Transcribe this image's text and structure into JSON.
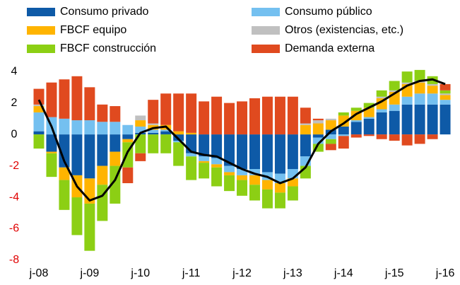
{
  "chart_data": {
    "type": "stacked_bar",
    "categories": [
      "j-08",
      null,
      null,
      null,
      "j-09",
      null,
      null,
      null,
      "j-10",
      null,
      null,
      null,
      "j-11",
      null,
      null,
      null,
      "j-12",
      null,
      null,
      null,
      "j-13",
      null,
      null,
      null,
      "j-14",
      null,
      null,
      null,
      "j-15",
      null,
      null,
      null,
      "j-16"
    ],
    "series": [
      {
        "name": "Consumo privado",
        "color": "#0e5aa7",
        "values": [
          0.2,
          -1.1,
          -2.1,
          -2.6,
          -2.8,
          -2.0,
          -1.1,
          -0.3,
          0.1,
          0.1,
          0.2,
          -0.4,
          -1.2,
          -1.4,
          -1.5,
          -2.0,
          -2.2,
          -2.2,
          -2.4,
          -2.5,
          -2.2,
          -1.4,
          -0.2,
          0.3,
          0.5,
          0.8,
          1.0,
          1.4,
          1.5,
          1.9,
          1.9,
          1.9,
          1.9
        ]
      },
      {
        "name": "Consumo público",
        "color": "#74c0f0",
        "values": [
          1.2,
          1.1,
          1.0,
          0.9,
          0.9,
          0.8,
          0.8,
          0.6,
          0.4,
          0.2,
          0.1,
          -0.1,
          -0.2,
          -0.3,
          -0.4,
          -0.4,
          -0.4,
          -0.4,
          -0.5,
          -0.6,
          -0.6,
          -0.6,
          -0.4,
          -0.3,
          -0.1,
          0.1,
          0.1,
          0.2,
          0.4,
          0.5,
          0.7,
          0.7,
          0.3
        ]
      },
      {
        "name": "FBCF equipo",
        "color": "#ffb400",
        "values": [
          0.4,
          -0.1,
          -0.8,
          -1.4,
          -1.6,
          -1.2,
          -0.9,
          -0.2,
          0.4,
          0.3,
          0.3,
          0.2,
          0.1,
          -0.1,
          -0.2,
          -0.2,
          -0.3,
          -0.6,
          -0.6,
          -0.6,
          -0.5,
          0.6,
          0.7,
          0.6,
          0.7,
          0.6,
          0.6,
          0.7,
          0.8,
          0.8,
          0.7,
          0.5,
          0.3
        ]
      },
      {
        "name": "Otros (existencias, etc.)",
        "color": "#c0c0c0",
        "values": [
          0.1,
          0,
          0,
          0,
          0,
          0,
          0,
          0,
          0.3,
          0.1,
          0,
          0,
          0,
          0,
          0,
          0,
          0,
          0,
          0,
          0,
          0,
          0.1,
          0.2,
          0.1,
          0,
          0,
          0,
          0.1,
          0.1,
          0.1,
          0.1,
          0.1,
          0.1
        ]
      },
      {
        "name": "FBCF construcción",
        "color": "#8ccf14",
        "values": [
          -0.9,
          -1.5,
          -1.9,
          -2.4,
          -3.0,
          -2.3,
          -2.4,
          -1.6,
          -1.2,
          -1.2,
          -1.2,
          -1.5,
          -1.5,
          -1.0,
          -1.2,
          -1.0,
          -1.0,
          -1.0,
          -1.2,
          -1.0,
          -0.9,
          -0.8,
          -0.5,
          -0.3,
          0.2,
          0.2,
          0.3,
          0.4,
          0.6,
          0.7,
          0.7,
          0.5,
          0.2
        ]
      },
      {
        "name": "Demanda externa",
        "color": "#e04a1f",
        "values": [
          1.0,
          2.2,
          2.5,
          2.8,
          2.1,
          1.1,
          1.0,
          -1.0,
          -0.5,
          1.5,
          2.0,
          2.4,
          2.5,
          2.1,
          2.4,
          2.0,
          2.1,
          2.3,
          2.4,
          2.4,
          2.4,
          1.0,
          0.1,
          -0.4,
          -0.8,
          -0.2,
          -0.1,
          -0.3,
          -0.4,
          -0.7,
          -0.6,
          -0.3,
          0.4
        ]
      },
      {
        "type": "line",
        "color": "#000000",
        "values": [
          2.2,
          0.5,
          -1.7,
          -3.3,
          -4.2,
          -3.9,
          -2.9,
          -1.1,
          0.1,
          0.4,
          0.5,
          -0.3,
          -1.1,
          -1.3,
          -1.4,
          -1.8,
          -2.2,
          -2.5,
          -2.7,
          -3.1,
          -2.8,
          -2.1,
          -0.6,
          0.2,
          0.7,
          1.3,
          1.7,
          2.1,
          2.6,
          3.1,
          3.4,
          3.5,
          3.2
        ]
      }
    ],
    "ylim": [
      -8,
      4.5
    ],
    "yticks": [
      -8,
      -6,
      -4,
      -2,
      0,
      2,
      4
    ],
    "negative_tick_color": "#e00000"
  }
}
